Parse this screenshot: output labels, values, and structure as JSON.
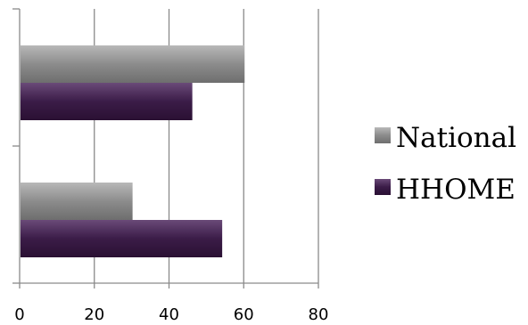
{
  "chart_data": {
    "type": "bar",
    "orientation": "horizontal",
    "categories": [
      "",
      ""
    ],
    "series": [
      {
        "name": "National",
        "values": [
          60,
          30
        ],
        "color": "#8a8a8a"
      },
      {
        "name": "HHOME",
        "values": [
          46,
          54
        ],
        "color": "#3a1a45"
      }
    ],
    "x_ticks": [
      "0",
      "20",
      "40",
      "60",
      "80"
    ],
    "xlim": [
      0,
      80
    ],
    "grid": "vertical",
    "legend_position": "right"
  }
}
